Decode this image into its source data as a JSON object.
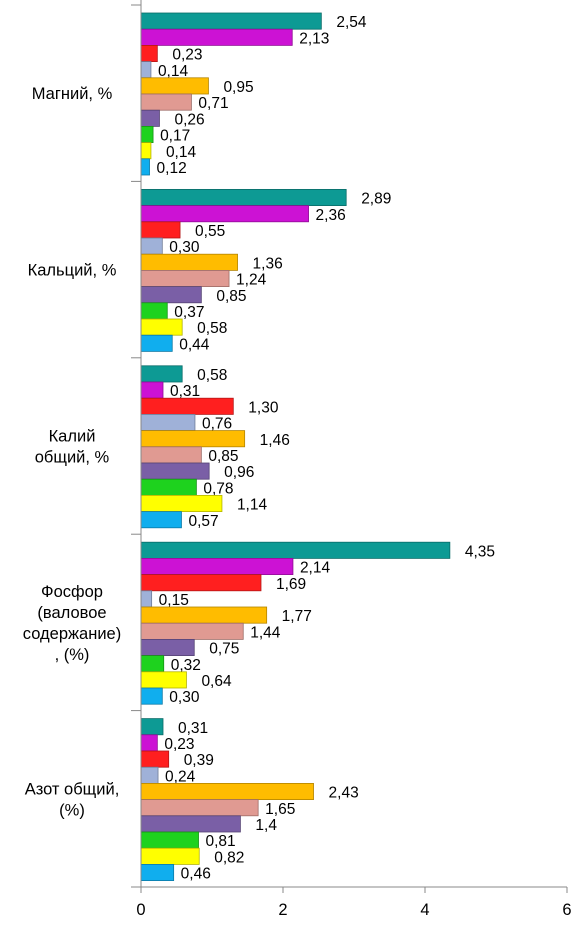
{
  "chart_data": {
    "type": "bar",
    "orientation": "horizontal",
    "xlim": [
      0,
      6
    ],
    "x_ticks": [
      "0",
      "2",
      "4",
      "6"
    ],
    "grid": false,
    "legend": "none",
    "series_colors": [
      "#0d9a94",
      "#cc12d4",
      "#ff1f1f",
      "#9fb1d8",
      "#ffbc00",
      "#e09a92",
      "#7a5fa6",
      "#1ed21e",
      "#ffff00",
      "#10aeee"
    ],
    "categories": [
      {
        "label_lines": [
          "Магний, %"
        ],
        "values": [
          2.54,
          2.13,
          0.23,
          0.14,
          0.95,
          0.71,
          0.26,
          0.17,
          0.14,
          0.12
        ],
        "value_labels": [
          "2,54",
          "2,13",
          "0,23",
          "0,14",
          "0,95",
          "0,71",
          "0,26",
          "0,17",
          "0,14",
          "0,12"
        ]
      },
      {
        "label_lines": [
          "Кальций, %"
        ],
        "values": [
          2.89,
          2.36,
          0.55,
          0.3,
          1.36,
          1.24,
          0.85,
          0.37,
          0.58,
          0.44
        ],
        "value_labels": [
          "2,89",
          "2,36",
          "0,55",
          "0,30",
          "1,36",
          "1,24",
          "0,85",
          "0,37",
          "0,58",
          "0,44"
        ]
      },
      {
        "label_lines": [
          "Калий",
          "общий,  %"
        ],
        "values": [
          0.58,
          0.31,
          1.3,
          0.76,
          1.46,
          0.85,
          0.96,
          0.78,
          1.14,
          0.57
        ],
        "value_labels": [
          "0,58",
          "0,31",
          "1,30",
          "0,76",
          "1,46",
          "0,85",
          "0,96",
          "0,78",
          "1,14",
          "0,57"
        ]
      },
      {
        "label_lines": [
          "Фосфор",
          "(валовое",
          "содержание)",
          ", (%)"
        ],
        "values": [
          4.35,
          2.14,
          1.69,
          0.15,
          1.77,
          1.44,
          0.75,
          0.32,
          0.64,
          0.3
        ],
        "value_labels": [
          "4,35",
          "2,14",
          "1,69",
          "0,15",
          "1,77",
          "1,44",
          "0,75",
          "0,32",
          "0,64",
          "0,30"
        ]
      },
      {
        "label_lines": [
          "Азот общий,",
          "(%)"
        ],
        "values": [
          0.31,
          0.23,
          0.39,
          0.24,
          2.43,
          1.65,
          1.4,
          0.81,
          0.82,
          0.46
        ],
        "value_labels": [
          "0,31",
          "0,23",
          "0,39",
          "0,24",
          "2,43",
          "1,65",
          "1,4",
          "0,81",
          "0,82",
          "0,46"
        ]
      }
    ]
  }
}
